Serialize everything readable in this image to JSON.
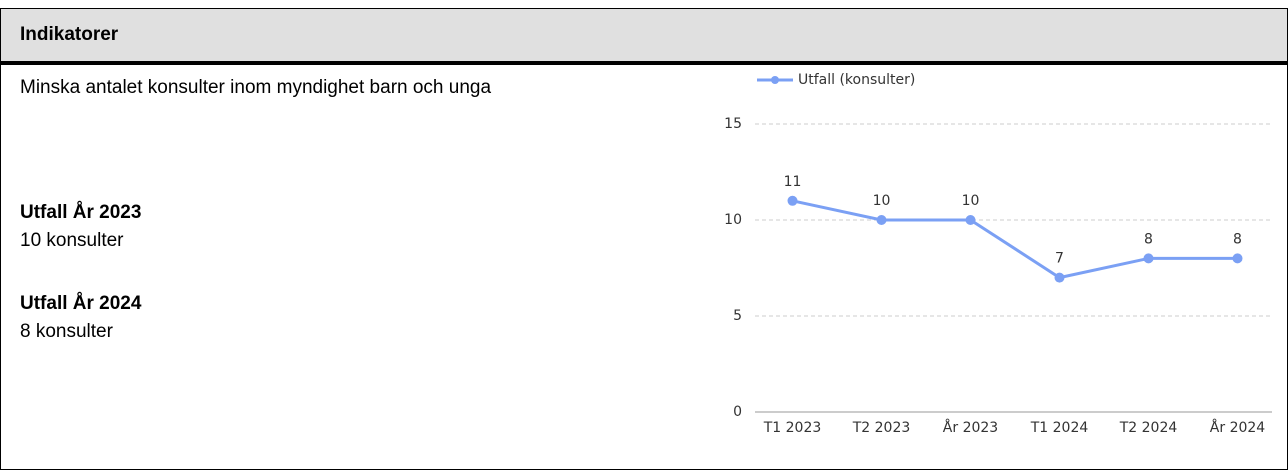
{
  "header": {
    "title": "Indikatorer"
  },
  "description": "Minska antalet konsulter inom myndighet barn och unga",
  "results": [
    {
      "label": "Utfall År 2023",
      "value": "10 konsulter"
    },
    {
      "label": "Utfall År 2024",
      "value": "8 konsulter"
    }
  ],
  "chart_data": {
    "type": "line",
    "categories": [
      "T1 2023",
      "T2 2023",
      "År 2023",
      "T1 2024",
      "T2 2024",
      "År 2024"
    ],
    "series": [
      {
        "name": "Utfall (konsulter)",
        "color": "#7ba0f4",
        "values": [
          11,
          10,
          10,
          7,
          8,
          8
        ]
      }
    ],
    "ylim": [
      0,
      15
    ],
    "yticks": [
      0,
      5,
      10,
      15
    ],
    "grid": true
  }
}
